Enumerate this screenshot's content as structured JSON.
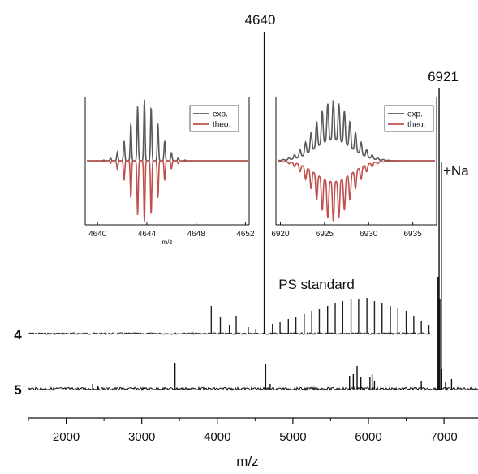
{
  "chart_data": [
    {
      "type": "line",
      "name_role": "main-spectrum",
      "xlabel": "m/z",
      "xlim": [
        1500,
        7450
      ],
      "xticks": [
        2000,
        3000,
        4000,
        5000,
        6000,
        7000
      ],
      "x_tick_labels": [
        "2000",
        "3000",
        "4000",
        "5000",
        "6000",
        "7000"
      ],
      "grid": false,
      "annotations": [
        "4640",
        "6921",
        "+Na",
        "PS standard"
      ],
      "peak_markers": [
        {
          "label": "4640",
          "x": 4620
        },
        {
          "label": "6921",
          "x": 6935
        }
      ],
      "series": [
        {
          "label": "4",
          "x_range": [
            1500,
            6820
          ],
          "color": "#202020",
          "peaks": [
            {
              "x": 3920,
              "h": 34
            },
            {
              "x": 4040,
              "h": 20
            },
            {
              "x": 4160,
              "h": 10
            },
            {
              "x": 4250,
              "h": 22
            },
            {
              "x": 4410,
              "h": 8
            },
            {
              "x": 4510,
              "h": 6
            },
            {
              "x": 4730,
              "h": 12
            },
            {
              "x": 4830,
              "h": 14
            },
            {
              "x": 4940,
              "h": 18
            },
            {
              "x": 5040,
              "h": 20
            },
            {
              "x": 5150,
              "h": 24
            },
            {
              "x": 5250,
              "h": 28
            },
            {
              "x": 5350,
              "h": 30
            },
            {
              "x": 5460,
              "h": 34
            },
            {
              "x": 5560,
              "h": 38
            },
            {
              "x": 5660,
              "h": 40
            },
            {
              "x": 5770,
              "h": 42
            },
            {
              "x": 5870,
              "h": 42
            },
            {
              "x": 5980,
              "h": 44
            },
            {
              "x": 6080,
              "h": 40
            },
            {
              "x": 6180,
              "h": 38
            },
            {
              "x": 6290,
              "h": 34
            },
            {
              "x": 6390,
              "h": 32
            },
            {
              "x": 6500,
              "h": 28
            },
            {
              "x": 6600,
              "h": 22
            },
            {
              "x": 6700,
              "h": 16
            },
            {
              "x": 6800,
              "h": 10
            }
          ]
        },
        {
          "label": "5",
          "x_range": [
            1500,
            7450
          ],
          "color": "#101010",
          "peaks": [
            {
              "x": 2350,
              "h": 6
            },
            {
              "x": 2420,
              "h": 4
            },
            {
              "x": 3440,
              "h": 32
            },
            {
              "x": 4640,
              "h": 30
            },
            {
              "x": 4700,
              "h": 6
            },
            {
              "x": 5750,
              "h": 16
            },
            {
              "x": 5800,
              "h": 18
            },
            {
              "x": 5850,
              "h": 28
            },
            {
              "x": 5900,
              "h": 14
            },
            {
              "x": 6020,
              "h": 14
            },
            {
              "x": 6050,
              "h": 18
            },
            {
              "x": 6080,
              "h": 10
            },
            {
              "x": 6700,
              "h": 10
            },
            {
              "x": 6921,
              "h": 138
            },
            {
              "x": 6945,
              "h": 110
            },
            {
              "x": 6970,
              "h": 24
            },
            {
              "x": 7100,
              "h": 12
            },
            {
              "x": 7020,
              "h": 8
            }
          ]
        }
      ]
    },
    {
      "type": "line",
      "name_role": "inset-4640",
      "xlabel": "m/z",
      "xlim": [
        4639,
        4652.3
      ],
      "xticks": [
        4640,
        4644,
        4648,
        4652
      ],
      "x_tick_labels": [
        "4640",
        "4644",
        "4648",
        "4652"
      ],
      "legend": [
        "exp.",
        "theo."
      ],
      "legend_position": "top-right",
      "center": 4643.8,
      "spacing": 0.55,
      "width": 1.55,
      "series": [
        {
          "name": "exp.",
          "color": "#595959",
          "direction": "up"
        },
        {
          "name": "theo.",
          "color": "#c0504d",
          "direction": "down"
        }
      ]
    },
    {
      "type": "line",
      "name_role": "inset-6921",
      "xlabel": "",
      "xlim": [
        6919.5,
        6937.7
      ],
      "xticks": [
        6920,
        6925,
        6930,
        6935
      ],
      "x_tick_labels": [
        "6920",
        "6925",
        "6930",
        "6935"
      ],
      "legend": [
        "exp.",
        "theo."
      ],
      "legend_position": "top-right",
      "center": 6926,
      "spacing": 0.63,
      "width": 2.9,
      "series": [
        {
          "name": "exp.",
          "color": "#595959",
          "direction": "up"
        },
        {
          "name": "theo.",
          "color": "#c0504d",
          "direction": "down"
        }
      ]
    }
  ]
}
